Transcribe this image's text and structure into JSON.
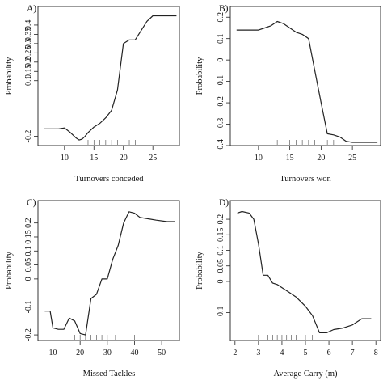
{
  "chart_data": [
    {
      "panel": "A)",
      "type": "line",
      "xlabel": "Turnovers conceded",
      "ylabel": "Probability",
      "xlim": [
        5.5,
        29.5
      ],
      "ylim": [
        -0.25,
        0.5
      ],
      "xticks": [
        10,
        15,
        20,
        25
      ],
      "yticks": [
        -0.2,
        0.1,
        0.15,
        0.2,
        0.25,
        0.3,
        0.35,
        0.4
      ],
      "yticklabels": [
        "-0.2",
        "0.1",
        "0.15",
        "0.2",
        "0.25",
        "0.3",
        "0.35",
        "0.4"
      ],
      "x": [
        6.5,
        9,
        10,
        11,
        12,
        12.5,
        13,
        13.5,
        14,
        15,
        16,
        17,
        18,
        19,
        20,
        21,
        22,
        23,
        24,
        25,
        26,
        29
      ],
      "y": [
        -0.16,
        -0.16,
        -0.155,
        -0.18,
        -0.21,
        -0.22,
        -0.215,
        -0.2,
        -0.18,
        -0.15,
        -0.13,
        -0.1,
        -0.06,
        0.05,
        0.3,
        0.32,
        0.32,
        0.37,
        0.42,
        0.45,
        0.45,
        0.45
      ],
      "rug": [
        13,
        14,
        15,
        16,
        17,
        18,
        19,
        21,
        22
      ]
    },
    {
      "panel": "B)",
      "type": "line",
      "xlabel": "Turnovers won",
      "ylabel": "Probability",
      "xlim": [
        5.5,
        29.5
      ],
      "ylim": [
        -0.4,
        0.25
      ],
      "xticks": [
        10,
        15,
        20,
        25
      ],
      "yticks": [
        -0.4,
        -0.3,
        -0.2,
        -0.1,
        0,
        0.1,
        0.2
      ],
      "yticklabels": [
        "-0.4",
        "-0.3",
        "-0.2",
        "-0.1",
        "0",
        "0.1",
        "0.2"
      ],
      "x": [
        6.5,
        9,
        10,
        11,
        12,
        13,
        14,
        15,
        16,
        17,
        18,
        19,
        20,
        21,
        22,
        23,
        24,
        25,
        29
      ],
      "y": [
        0.14,
        0.14,
        0.14,
        0.15,
        0.16,
        0.18,
        0.17,
        0.15,
        0.13,
        0.12,
        0.1,
        -0.05,
        -0.2,
        -0.345,
        -0.35,
        -0.36,
        -0.38,
        -0.385,
        -0.385
      ],
      "rug": [
        13,
        15,
        16,
        17,
        18,
        19,
        21,
        22
      ]
    },
    {
      "panel": "C)",
      "type": "line",
      "xlabel": "Missed Tackles",
      "ylabel": "Probability",
      "xlim": [
        4.5,
        56.5
      ],
      "ylim": [
        -0.22,
        0.28
      ],
      "xticks": [
        10,
        20,
        30,
        40,
        50
      ],
      "yticks": [
        -0.2,
        -0.1,
        0,
        0.05,
        0.1,
        0.15,
        0.2
      ],
      "yticklabels": [
        "-0.2",
        "-0.1",
        "0",
        "0.05",
        "0.1",
        "0.15",
        "0.2"
      ],
      "x": [
        7,
        9,
        10,
        12,
        14,
        16,
        18,
        20,
        22,
        24,
        26,
        28,
        30,
        32,
        34,
        36,
        38,
        40,
        42,
        45,
        48,
        52,
        55
      ],
      "y": [
        -0.115,
        -0.115,
        -0.175,
        -0.18,
        -0.18,
        -0.14,
        -0.15,
        -0.195,
        -0.2,
        -0.07,
        -0.055,
        0.0,
        0.0,
        0.07,
        0.12,
        0.2,
        0.24,
        0.235,
        0.22,
        0.215,
        0.21,
        0.205,
        0.205
      ],
      "rug": [
        18,
        20,
        22,
        24,
        26,
        28,
        30,
        33,
        40
      ]
    },
    {
      "panel": "D)",
      "type": "line",
      "xlabel": "Average Carry (m)",
      "ylabel": "Probability",
      "xlim": [
        1.8,
        8.2
      ],
      "ylim": [
        -0.19,
        0.26
      ],
      "xticks": [
        2,
        3,
        4,
        5,
        6,
        7,
        8
      ],
      "yticks": [
        -0.1,
        0,
        0.05,
        0.1,
        0.15,
        0.2
      ],
      "yticklabels": [
        "-0.1",
        "0",
        "0.05",
        "0.1",
        "0.15",
        "0.2"
      ],
      "x": [
        2.1,
        2.3,
        2.6,
        2.8,
        3.0,
        3.2,
        3.4,
        3.6,
        3.8,
        4.0,
        4.3,
        4.6,
        5.0,
        5.3,
        5.6,
        5.9,
        6.2,
        6.6,
        7.0,
        7.4,
        7.8
      ],
      "y": [
        0.22,
        0.225,
        0.22,
        0.2,
        0.12,
        0.02,
        0.02,
        -0.005,
        -0.01,
        -0.02,
        -0.035,
        -0.05,
        -0.08,
        -0.11,
        -0.165,
        -0.165,
        -0.155,
        -0.15,
        -0.14,
        -0.12,
        -0.12
      ],
      "rug": [
        3.0,
        3.2,
        3.4,
        3.6,
        3.8,
        4.0,
        4.2,
        4.4,
        4.6,
        5.0,
        5.3
      ]
    }
  ]
}
